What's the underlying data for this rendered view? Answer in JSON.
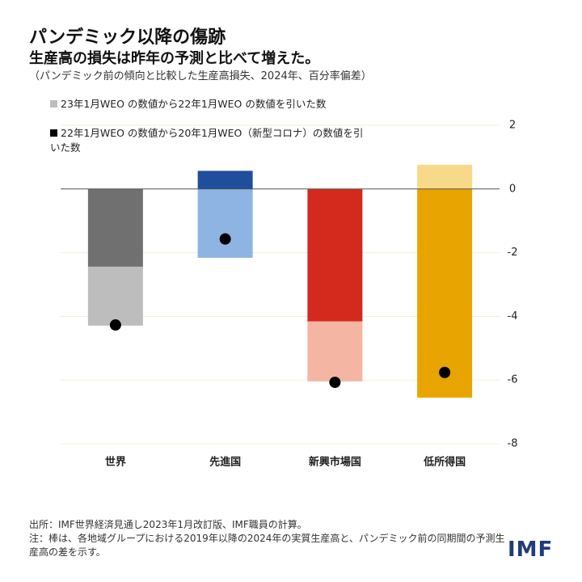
{
  "chart_data": {
    "type": "bar",
    "stacked": true,
    "title": "パンデミック以降の傷跡",
    "subtitle": "生産高の損失は昨年の予測と比べて増えた。",
    "note": "（パンデミック前の傾向と比較した生産高損失、2024年、百分率偏差）",
    "categories": [
      "世界",
      "先進国",
      "新興市場国",
      "低所得国"
    ],
    "series": [
      {
        "name": "22年1月WEO の数値から20年1月WEO（新型コロナ）の数値を引いた数",
        "color": "#000000",
        "colors": [
          "#707070",
          "#1f4e9c",
          "#d42a1e",
          "#e8a400"
        ],
        "values": [
          -2.44,
          0.57,
          -4.16,
          -6.55
        ]
      },
      {
        "name": "23年1月WEO の数値から22年1月WEO の数値を引いた数",
        "color": "#bdbdbd",
        "colors": [
          "#bdbdbd",
          "#8db4e2",
          "#f4b5a3",
          "#f7d98a"
        ],
        "values": [
          -1.85,
          -2.16,
          -1.88,
          0.76
        ]
      }
    ],
    "dot_values": [
      -4.27,
      -1.57,
      -6.07,
      -5.76
    ],
    "dot_color": "#000000",
    "ylim": [
      -8,
      2
    ],
    "yticks": [
      2,
      0,
      -2,
      -4,
      -6,
      -8
    ],
    "grid": true,
    "source": "出所：IMF世界経済見通し2023年1月改訂版、IMF職員の計算。",
    "footnote": "注：棒は、各地域グループにおける2019年以降の2024年の実質生産高と、パンデミック前の同期間の予測生産高の差を示す。",
    "logo": "IMF"
  }
}
